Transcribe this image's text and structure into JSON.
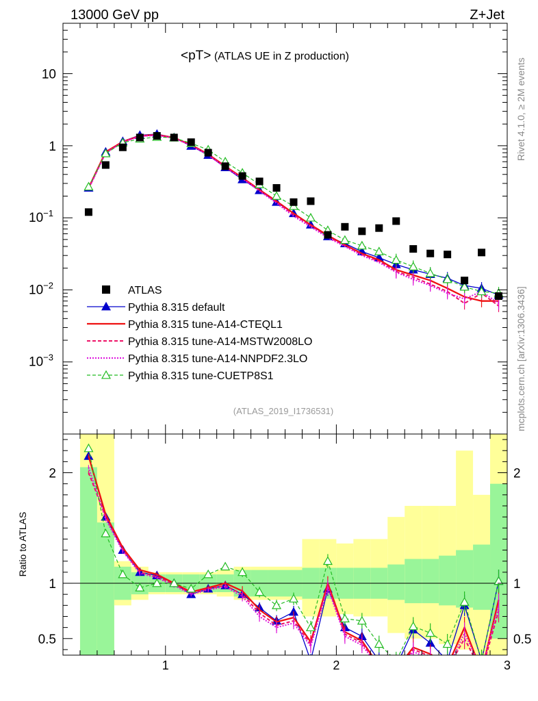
{
  "header": {
    "left_title": "13000 GeV pp",
    "right_title": "Z+Jet",
    "plot_title_main": "<pT>",
    "plot_title_sub": " (ATLAS UE in Z production)",
    "analysis_id": "(ATLAS_2019_I1736531)",
    "side_rivet": "Rivet 4.1.0, ≥ 2M events",
    "side_mcplots": "mcplots.cern.ch [arXiv:1306.3436]"
  },
  "colors": {
    "atlas": "#000000",
    "default": "#0000cc",
    "cteql1": "#ee1111",
    "mstw": "#ee1166",
    "nnpdf": "#dd11dd",
    "cuetp8s1": "#22bb22",
    "band_inner": "#99f599",
    "band_outer": "#ffff99"
  },
  "legend": [
    {
      "key": "atlas",
      "label": "ATLAS"
    },
    {
      "key": "default",
      "label": "Pythia 8.315 default"
    },
    {
      "key": "cteql1",
      "label": "Pythia 8.315 tune-A14-CTEQL1"
    },
    {
      "key": "mstw",
      "label": "Pythia 8.315 tune-A14-MSTW2008LO"
    },
    {
      "key": "nnpdf",
      "label": "Pythia 8.315 tune-A14-NNPDF2.3LO"
    },
    {
      "key": "cuetp8s1",
      "label": "Pythia 8.315 tune-CUETP8S1"
    }
  ],
  "chart_data": [
    {
      "type": "scatter",
      "title": "<pT> (ATLAS UE in Z production)",
      "yscale": "log",
      "xlim": [
        0.4,
        3.0
      ],
      "ylim": [
        0.0001,
        50
      ],
      "x_ticks": [
        "1",
        "2",
        "3"
      ],
      "y_ticks": [
        "10^-3",
        "10^-2",
        "10^-1",
        "1",
        "10"
      ],
      "x": [
        0.55,
        0.65,
        0.75,
        0.85,
        0.95,
        1.05,
        1.15,
        1.25,
        1.35,
        1.45,
        1.55,
        1.65,
        1.75,
        1.85,
        1.95,
        2.05,
        2.15,
        2.25,
        2.35,
        2.45,
        2.55,
        2.65,
        2.75,
        2.85,
        2.95
      ],
      "series": [
        {
          "name": "ATLAS",
          "values": [
            0.12,
            0.54,
            0.95,
            1.3,
            1.37,
            1.3,
            1.12,
            0.8,
            0.52,
            0.38,
            0.32,
            0.26,
            0.165,
            0.17,
            0.058,
            0.075,
            0.065,
            0.072,
            0.09,
            0.037,
            0.032,
            0.031,
            0.0135,
            0.033,
            0.0082
          ]
        },
        {
          "name": "Pythia 8.315 default",
          "values": [
            0.26,
            0.82,
            1.15,
            1.4,
            1.45,
            1.3,
            0.99,
            0.74,
            0.5,
            0.34,
            0.24,
            0.165,
            0.115,
            0.08,
            0.055,
            0.044,
            0.034,
            0.028,
            0.0225,
            0.019,
            0.0165,
            0.0145,
            0.0115,
            0.0105,
            0.0085
          ]
        },
        {
          "name": "Pythia 8.315 tune-A14-CTEQL1",
          "values": [
            0.26,
            0.82,
            1.14,
            1.37,
            1.42,
            1.29,
            1.03,
            0.76,
            0.52,
            0.36,
            0.245,
            0.17,
            0.115,
            0.08,
            0.057,
            0.042,
            0.032,
            0.026,
            0.019,
            0.016,
            0.0135,
            0.0105,
            0.008,
            0.007,
            0.007
          ]
        },
        {
          "name": "Pythia 8.315 tune-A14-MSTW2008LO",
          "values": [
            0.255,
            0.8,
            1.13,
            1.36,
            1.41,
            1.28,
            1.02,
            0.75,
            0.51,
            0.355,
            0.24,
            0.165,
            0.11,
            0.078,
            0.055,
            0.041,
            0.031,
            0.025,
            0.018,
            0.015,
            0.012,
            0.0095,
            0.0065,
            0.009,
            0.006
          ]
        },
        {
          "name": "Pythia 8.315 tune-A14-NNPDF2.3LO",
          "values": [
            0.25,
            0.79,
            1.12,
            1.35,
            1.4,
            1.27,
            1.01,
            0.74,
            0.5,
            0.35,
            0.235,
            0.16,
            0.105,
            0.075,
            0.053,
            0.04,
            0.03,
            0.024,
            0.0175,
            0.014,
            0.0115,
            0.009,
            0.0075,
            0.0095,
            0.0065
          ]
        },
        {
          "name": "Pythia 8.315 tune-CUETP8S1",
          "values": [
            0.27,
            0.78,
            1.1,
            1.25,
            1.32,
            1.29,
            1.08,
            0.88,
            0.6,
            0.42,
            0.29,
            0.2,
            0.145,
            0.1,
            0.067,
            0.049,
            0.041,
            0.034,
            0.026,
            0.021,
            0.017,
            0.014,
            0.011,
            0.0095,
            0.009
          ]
        }
      ]
    },
    {
      "type": "line",
      "ylabel": "Ratio to ATLAS",
      "xlim": [
        0.4,
        3.0
      ],
      "ylim": [
        0.35,
        2.35
      ],
      "x_ticks": [
        "1",
        "2",
        "3"
      ],
      "y_ticks": [
        "0.5",
        "1",
        "2"
      ],
      "bin_edges": [
        0.5,
        0.6,
        0.7,
        0.8,
        0.9,
        1.0,
        1.1,
        1.2,
        1.3,
        1.4,
        1.5,
        1.6,
        1.7,
        1.8,
        1.9,
        2.0,
        2.1,
        2.2,
        2.3,
        2.4,
        2.5,
        2.6,
        2.7,
        2.8,
        2.9,
        3.0
      ],
      "band_inner": [
        [
          0.35,
          2.05
        ],
        [
          0.35,
          1.55
        ],
        [
          0.85,
          1.15
        ],
        [
          0.9,
          1.1
        ],
        [
          0.92,
          1.08
        ],
        [
          0.92,
          1.08
        ],
        [
          0.92,
          1.08
        ],
        [
          0.92,
          1.08
        ],
        [
          0.92,
          1.08
        ],
        [
          0.88,
          1.12
        ],
        [
          0.88,
          1.12
        ],
        [
          0.88,
          1.12
        ],
        [
          0.88,
          1.12
        ],
        [
          0.86,
          1.14
        ],
        [
          0.86,
          1.14
        ],
        [
          0.86,
          1.14
        ],
        [
          0.86,
          1.14
        ],
        [
          0.86,
          1.14
        ],
        [
          0.85,
          1.17
        ],
        [
          0.82,
          1.22
        ],
        [
          0.82,
          1.22
        ],
        [
          0.8,
          1.25
        ],
        [
          0.78,
          1.3
        ],
        [
          0.76,
          1.35
        ],
        [
          0.5,
          1.9
        ]
      ],
      "band_outer": [
        [
          0.35,
          2.35
        ],
        [
          0.35,
          2.35
        ],
        [
          0.8,
          1.2
        ],
        [
          0.85,
          1.15
        ],
        [
          0.9,
          1.1
        ],
        [
          0.9,
          1.1
        ],
        [
          0.9,
          1.1
        ],
        [
          0.9,
          1.1
        ],
        [
          0.88,
          1.12
        ],
        [
          0.85,
          1.15
        ],
        [
          0.85,
          1.15
        ],
        [
          0.85,
          1.15
        ],
        [
          0.85,
          1.15
        ],
        [
          0.7,
          1.4
        ],
        [
          0.7,
          1.4
        ],
        [
          0.72,
          1.36
        ],
        [
          0.7,
          1.4
        ],
        [
          0.7,
          1.4
        ],
        [
          0.55,
          1.6
        ],
        [
          0.5,
          1.7
        ],
        [
          0.5,
          1.7
        ],
        [
          0.45,
          1.7
        ],
        [
          0.4,
          2.2
        ],
        [
          0.35,
          1.8
        ],
        [
          0.35,
          2.35
        ]
      ],
      "x": [
        0.55,
        0.65,
        0.75,
        0.85,
        0.95,
        1.05,
        1.15,
        1.25,
        1.35,
        1.45,
        1.55,
        1.65,
        1.75,
        1.85,
        1.95,
        2.05,
        2.15,
        2.25,
        2.35,
        2.45,
        2.55,
        2.65,
        2.75,
        2.85,
        2.95
      ],
      "series": [
        {
          "name": "Pythia 8.315 default",
          "values": [
            2.15,
            1.6,
            1.3,
            1.1,
            1.07,
            1.0,
            0.9,
            0.95,
            0.98,
            0.9,
            0.78,
            0.66,
            0.74,
            0.3,
            0.95,
            0.6,
            0.52,
            0.3,
            0.25,
            0.58,
            0.46,
            0.3,
            0.8,
            0.3,
            1.02
          ]
        },
        {
          "name": "Pythia 8.315 tune-A14-CTEQL1",
          "values": [
            2.15,
            1.62,
            1.32,
            1.12,
            1.08,
            1.0,
            0.92,
            0.96,
            1.0,
            0.93,
            0.76,
            0.65,
            0.69,
            0.47,
            1.0,
            0.56,
            0.48,
            0.25,
            0.22,
            0.42,
            0.36,
            0.25,
            0.6,
            0.2,
            0.85
          ]
        },
        {
          "name": "Pythia 8.315 tune-A14-MSTW2008LO",
          "values": [
            2.0,
            1.6,
            1.3,
            1.1,
            1.06,
            0.99,
            0.91,
            0.95,
            0.98,
            0.9,
            0.73,
            0.62,
            0.66,
            0.45,
            0.98,
            0.54,
            0.46,
            0.25,
            0.2,
            0.4,
            0.34,
            0.22,
            0.5,
            0.2,
            0.75
          ]
        },
        {
          "name": "Pythia 8.315 tune-A14-NNPDF2.3LO",
          "values": [
            2.05,
            1.58,
            1.29,
            1.09,
            1.05,
            0.98,
            0.9,
            0.94,
            0.97,
            0.88,
            0.7,
            0.6,
            0.64,
            0.43,
            0.96,
            0.52,
            0.44,
            0.24,
            0.2,
            0.38,
            0.32,
            0.22,
            0.55,
            0.22,
            0.8
          ]
        },
        {
          "name": "Pythia 8.315 tune-CUETP8S1",
          "values": [
            2.22,
            1.45,
            1.08,
            0.96,
            1.0,
            1.0,
            0.95,
            1.08,
            1.15,
            1.1,
            0.92,
            0.8,
            0.86,
            0.6,
            1.2,
            0.68,
            0.66,
            0.45,
            0.3,
            0.61,
            0.55,
            0.45,
            0.83,
            0.3,
            1.02
          ]
        }
      ]
    }
  ]
}
